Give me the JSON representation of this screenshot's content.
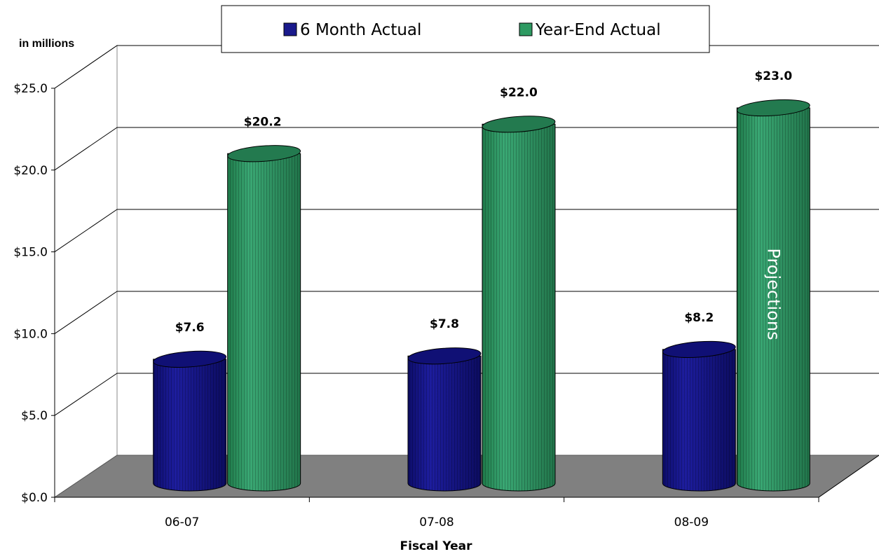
{
  "chart_data": {
    "type": "bar",
    "style": "3d-cylinder",
    "unit_label": "in millions",
    "xlabel": "Fiscal Year",
    "categories": [
      "06-07",
      "07-08",
      "08-09"
    ],
    "series": [
      {
        "name": "6 Month Actual",
        "values": [
          7.6,
          7.8,
          8.2
        ],
        "labels": [
          "$7.6",
          "$7.8",
          "$8.2"
        ],
        "color": "#1a1a8c"
      },
      {
        "name": "Year-End Actual",
        "values": [
          20.2,
          22.0,
          23.0
        ],
        "labels": [
          "$20.2",
          "$22.0",
          "$23.0"
        ],
        "color": "#2e9a62"
      }
    ],
    "ylim": [
      0,
      25
    ],
    "yticks": [
      0,
      5,
      10,
      15,
      20,
      25
    ],
    "ytick_labels": [
      "$0.0",
      "$5.0",
      "$10.0",
      "$15.0",
      "$20.0",
      "$25.0"
    ],
    "grid": true,
    "legend": "top-center",
    "annotation": {
      "text": "Projections",
      "category": "08-09",
      "series": "Year-End Actual"
    }
  }
}
